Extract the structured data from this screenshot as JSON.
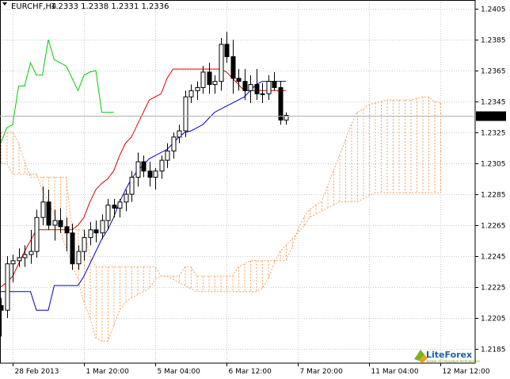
{
  "header": {
    "symbol": "EURCHF,H4",
    "quote": "1.2333 1.2338 1.2331 1.2336"
  },
  "colors": {
    "tenkan": "#dd0000",
    "kijun": "#0000cc",
    "chikou": "#00cc00",
    "cloud": "#f4a460",
    "candle": "#000000",
    "background": "#ffffff"
  },
  "brand": {
    "name": "LiteForex",
    "tagline": "broker of innovative technologies"
  },
  "chart_data": {
    "type": "candlestick",
    "symbol": "EURCHF",
    "timeframe": "H4",
    "last_price": 1.2336,
    "last_price_label": "1.2336",
    "ylim": [
      1.2185,
      1.2405
    ],
    "yticks": [
      "1.2405",
      "1.2385",
      "1.2365",
      "1.2345",
      "1.2325",
      "1.2305",
      "1.2285",
      "1.2265",
      "1.2245",
      "1.2225",
      "1.2205",
      "1.2185"
    ],
    "xticks": [
      {
        "label": "28 Feb 2013",
        "bar": 2
      },
      {
        "label": "1 Mar 20:00",
        "bar": 14
      },
      {
        "label": "5 Mar 04:00",
        "bar": 26
      },
      {
        "label": "6 Mar 12:00",
        "bar": 38
      },
      {
        "label": "7 Mar 20:00",
        "bar": 50
      },
      {
        "label": "11 Mar 04:00",
        "bar": 62
      },
      {
        "label": "12 Mar 12:00",
        "bar": 74
      }
    ],
    "candles": [
      [
        1.2213,
        1.2218,
        1.2193,
        1.221
      ],
      [
        1.221,
        1.2245,
        1.2205,
        1.224
      ],
      [
        1.224,
        1.2246,
        1.2228,
        1.2242
      ],
      [
        1.2242,
        1.225,
        1.2238,
        1.2244
      ],
      [
        1.2244,
        1.2252,
        1.2238,
        1.2246
      ],
      [
        1.2246,
        1.2262,
        1.224,
        1.2248
      ],
      [
        1.2248,
        1.2275,
        1.2244,
        1.227
      ],
      [
        1.227,
        1.229,
        1.2265,
        1.228
      ],
      [
        1.228,
        1.2288,
        1.2262,
        1.2265
      ],
      [
        1.2265,
        1.2275,
        1.2255,
        1.2268
      ],
      [
        1.2268,
        1.2276,
        1.226,
        1.2264
      ],
      [
        1.2264,
        1.227,
        1.2248,
        1.226
      ],
      [
        1.226,
        1.2266,
        1.2236,
        1.224
      ],
      [
        1.224,
        1.2252,
        1.2236,
        1.2248
      ],
      [
        1.2248,
        1.2262,
        1.2242,
        1.2257
      ],
      [
        1.2257,
        1.2267,
        1.2252,
        1.2262
      ],
      [
        1.2262,
        1.2268,
        1.2254,
        1.226
      ],
      [
        1.226,
        1.2272,
        1.2256,
        1.2268
      ],
      [
        1.2268,
        1.2282,
        1.2262,
        1.2278
      ],
      [
        1.2278,
        1.2282,
        1.227,
        1.2276
      ],
      [
        1.2276,
        1.2282,
        1.227,
        1.228
      ],
      [
        1.228,
        1.2288,
        1.2274,
        1.2285
      ],
      [
        1.2285,
        1.23,
        1.228,
        1.2296
      ],
      [
        1.2296,
        1.2312,
        1.229,
        1.2306
      ],
      [
        1.2306,
        1.231,
        1.2296,
        1.23
      ],
      [
        1.23,
        1.2306,
        1.229,
        1.2296
      ],
      [
        1.2296,
        1.2302,
        1.2288,
        1.23
      ],
      [
        1.23,
        1.231,
        1.2295,
        1.2307
      ],
      [
        1.2307,
        1.2318,
        1.2302,
        1.2313
      ],
      [
        1.2313,
        1.2325,
        1.2308,
        1.2322
      ],
      [
        1.2322,
        1.233,
        1.2318,
        1.2326
      ],
      [
        1.2326,
        1.2352,
        1.2322,
        1.2348
      ],
      [
        1.2348,
        1.2356,
        1.2344,
        1.2352
      ],
      [
        1.2352,
        1.2358,
        1.2346,
        1.2354
      ],
      [
        1.2354,
        1.2368,
        1.235,
        1.2364
      ],
      [
        1.2364,
        1.237,
        1.235,
        1.2356
      ],
      [
        1.2356,
        1.2362,
        1.235,
        1.2358
      ],
      [
        1.2358,
        1.2386,
        1.2352,
        1.2382
      ],
      [
        1.2382,
        1.239,
        1.237,
        1.2374
      ],
      [
        1.2374,
        1.2385,
        1.235,
        1.236
      ],
      [
        1.236,
        1.2366,
        1.2352,
        1.2358
      ],
      [
        1.2358,
        1.2366,
        1.2346,
        1.2352
      ],
      [
        1.2352,
        1.2362,
        1.2344,
        1.2356
      ],
      [
        1.2356,
        1.2366,
        1.2346,
        1.235
      ],
      [
        1.235,
        1.2357,
        1.2344,
        1.235
      ],
      [
        1.235,
        1.2362,
        1.2346,
        1.2358
      ],
      [
        1.2358,
        1.2364,
        1.2352,
        1.2354
      ],
      [
        1.2354,
        1.2358,
        1.233,
        1.2333
      ],
      [
        1.2333,
        1.2338,
        1.233,
        1.2336
      ]
    ],
    "tenkan": [
      1.2225,
      1.2228,
      1.2232,
      1.224,
      1.2248,
      1.2255,
      1.2262,
      1.2262,
      1.2262,
      1.2262,
      1.2262,
      1.2262,
      1.2262,
      1.2265,
      1.227,
      1.228,
      1.2288,
      1.2292,
      1.2295,
      1.23,
      1.231,
      1.2318,
      1.2322,
      1.233,
      1.2338,
      1.2346,
      1.2348,
      1.235,
      1.236,
      1.2366,
      1.2366,
      1.2366,
      1.2366,
      1.2366,
      1.2366,
      1.2366,
      1.2366,
      1.2366,
      1.2364,
      1.236,
      1.2356,
      1.2352,
      1.2352,
      1.2352,
      1.2352,
      1.2352,
      1.2352,
      1.2352,
      1.2352
    ],
    "kijun": [
      1.2222,
      1.2222,
      1.2222,
      1.2222,
      1.2222,
      1.2222,
      1.221,
      1.221,
      1.221,
      1.2226,
      1.2226,
      1.2226,
      1.2226,
      1.2226,
      1.2232,
      1.224,
      1.2248,
      1.2256,
      1.2262,
      1.227,
      1.228,
      1.2288,
      1.2295,
      1.23,
      1.2304,
      1.2308,
      1.231,
      1.2312,
      1.2314,
      1.2318,
      1.2322,
      1.2325,
      1.2326,
      1.2328,
      1.233,
      1.2334,
      1.2338,
      1.234,
      1.2342,
      1.2344,
      1.2346,
      1.2348,
      1.2352,
      1.2356,
      1.2358,
      1.2358,
      1.2358,
      1.2358,
      1.2358
    ],
    "chikou": [
      1.2318,
      1.2328,
      1.233,
      1.2355,
      1.2355,
      1.237,
      1.2362,
      1.2362,
      1.2385,
      1.2372,
      1.237,
      1.2368,
      1.236,
      1.2352,
      1.2362,
      1.2364,
      1.2365,
      1.2338,
      1.2338,
      1.2338
    ],
    "cloud_upper": [
      1.2325,
      1.2325,
      1.2325,
      1.2318,
      1.2306,
      1.2296,
      1.2296,
      1.2296,
      1.2296,
      1.2296,
      1.2296,
      1.2296,
      1.2262,
      1.2262,
      1.2262,
      1.2245,
      1.2238,
      1.2238,
      1.2238,
      1.2238,
      1.2238,
      1.2238,
      1.2238,
      1.2238,
      1.2238,
      1.2238,
      1.2238,
      1.2232,
      1.2232,
      1.2232,
      1.2232,
      1.2238,
      1.2238,
      1.2232,
      1.2232,
      1.2232,
      1.2232,
      1.2232,
      1.2232,
      1.2232,
      1.2238,
      1.224,
      1.2242,
      1.2242,
      1.2242,
      1.2242,
      1.2242,
      1.2242,
      1.2242,
      1.225,
      1.2262,
      1.227,
      1.2275,
      1.2278,
      1.228,
      1.229,
      1.23,
      1.231,
      1.232,
      1.233,
      1.2338,
      1.234,
      1.2343,
      1.2344,
      1.2345,
      1.2346,
      1.2346,
      1.2346,
      1.2346,
      1.2346,
      1.2347,
      1.2348,
      1.2348,
      1.2345,
      1.2344
    ],
    "cloud_lower": [
      1.2305,
      1.2305,
      1.2298,
      1.2298,
      1.2298,
      1.2298,
      1.2298,
      1.2288,
      1.228,
      1.2272,
      1.2262,
      1.225,
      1.224,
      1.223,
      1.2215,
      1.2205,
      1.2192,
      1.219,
      1.219,
      1.22,
      1.221,
      1.2215,
      1.2218,
      1.222,
      1.2222,
      1.2224,
      1.223,
      1.2232,
      1.2232,
      1.223,
      1.2228,
      1.2226,
      1.2224,
      1.2222,
      1.2222,
      1.2222,
      1.2222,
      1.2222,
      1.2222,
      1.2222,
      1.2222,
      1.2222,
      1.2222,
      1.2222,
      1.2224,
      1.223,
      1.224,
      1.2248,
      1.2252,
      1.2256,
      1.226,
      1.2264,
      1.227,
      1.2272,
      1.2274,
      1.2276,
      1.2278,
      1.228,
      1.228,
      1.228,
      1.228,
      1.2282,
      1.2284,
      1.2286,
      1.2286,
      1.2286,
      1.2286,
      1.2286,
      1.2286,
      1.2286,
      1.2286,
      1.2286,
      1.2286,
      1.2286,
      1.2286
    ]
  }
}
